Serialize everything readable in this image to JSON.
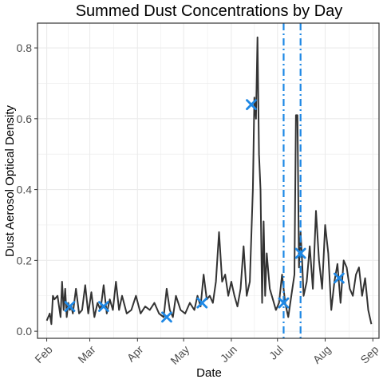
{
  "chart_data": {
    "type": "line",
    "title": "Summed Dust Concentrations by Day",
    "xlabel": "Date",
    "ylabel": "Dust Aerosol Optical Density",
    "x_ticks": [
      {
        "date": "2021-02-01",
        "label": "Feb"
      },
      {
        "date": "2021-03-01",
        "label": "Mar"
      },
      {
        "date": "2021-04-01",
        "label": "Apr"
      },
      {
        "date": "2021-05-01",
        "label": "May"
      },
      {
        "date": "2021-06-01",
        "label": "Jun"
      },
      {
        "date": "2021-07-01",
        "label": "Jul"
      },
      {
        "date": "2021-08-01",
        "label": "Aug"
      },
      {
        "date": "2021-09-01",
        "label": "Sep"
      }
    ],
    "xlim": [
      "2021-01-26",
      "2021-09-05"
    ],
    "y_ticks": [
      {
        "value": 0.0,
        "label": "0.0"
      },
      {
        "value": 0.2,
        "label": "0.2"
      },
      {
        "value": 0.4,
        "label": "0.4"
      },
      {
        "value": 0.6,
        "label": "0.6"
      },
      {
        "value": 0.8,
        "label": "0.8"
      }
    ],
    "ylim": [
      -0.02,
      0.87
    ],
    "grid": true,
    "colors": {
      "line": "#333333",
      "marker": "#1e88e5",
      "vline": "#1e88e5",
      "grid": "#ebebeb",
      "panel_border": "#333333"
    },
    "series": [
      {
        "x": [
          "2021-02-01",
          "2021-02-03",
          "2021-02-04",
          "2021-02-05",
          "2021-02-06",
          "2021-02-08",
          "2021-02-09",
          "2021-02-10",
          "2021-02-11",
          "2021-02-12",
          "2021-02-13",
          "2021-02-14",
          "2021-02-15",
          "2021-02-16",
          "2021-02-17",
          "2021-02-18",
          "2021-02-20",
          "2021-02-22",
          "2021-02-24",
          "2021-02-26",
          "2021-02-28",
          "2021-03-02",
          "2021-03-04",
          "2021-03-06",
          "2021-03-08",
          "2021-03-10",
          "2021-03-12",
          "2021-03-14",
          "2021-03-16",
          "2021-03-18",
          "2021-03-20",
          "2021-03-22",
          "2021-03-25",
          "2021-03-28",
          "2021-03-31",
          "2021-04-03",
          "2021-04-06",
          "2021-04-09",
          "2021-04-12",
          "2021-04-15",
          "2021-04-18",
          "2021-04-20",
          "2021-04-22",
          "2021-04-24",
          "2021-04-26",
          "2021-04-29",
          "2021-05-02",
          "2021-05-05",
          "2021-05-08",
          "2021-05-10",
          "2021-05-12",
          "2021-05-14",
          "2021-05-16",
          "2021-05-18",
          "2021-05-20",
          "2021-05-22",
          "2021-05-24",
          "2021-05-26",
          "2021-05-28",
          "2021-05-30",
          "2021-06-01",
          "2021-06-03",
          "2021-06-05",
          "2021-06-07",
          "2021-06-09",
          "2021-06-11",
          "2021-06-13",
          "2021-06-15",
          "2021-06-16",
          "2021-06-17",
          "2021-06-18",
          "2021-06-19",
          "2021-06-20",
          "2021-06-21",
          "2021-06-22",
          "2021-06-23",
          "2021-06-24",
          "2021-06-26",
          "2021-06-28",
          "2021-06-30",
          "2021-07-02",
          "2021-07-04",
          "2021-07-06",
          "2021-07-08",
          "2021-07-10",
          "2021-07-12",
          "2021-07-13",
          "2021-07-14",
          "2021-07-15",
          "2021-07-16",
          "2021-07-17",
          "2021-07-18",
          "2021-07-20",
          "2021-07-22",
          "2021-07-24",
          "2021-07-26",
          "2021-07-28",
          "2021-07-30",
          "2021-08-01",
          "2021-08-03",
          "2021-08-05",
          "2021-08-07",
          "2021-08-09",
          "2021-08-11",
          "2021-08-13",
          "2021-08-15",
          "2021-08-17",
          "2021-08-19",
          "2021-08-21",
          "2021-08-23",
          "2021-08-25",
          "2021-08-27",
          "2021-08-29",
          "2021-08-31"
        ],
        "y": [
          0.03,
          0.05,
          0.02,
          0.1,
          0.09,
          0.1,
          0.07,
          0.04,
          0.14,
          0.06,
          0.12,
          0.04,
          0.08,
          0.06,
          0.07,
          0.05,
          0.12,
          0.05,
          0.06,
          0.13,
          0.05,
          0.11,
          0.04,
          0.08,
          0.06,
          0.13,
          0.05,
          0.09,
          0.06,
          0.14,
          0.06,
          0.1,
          0.05,
          0.06,
          0.1,
          0.05,
          0.07,
          0.06,
          0.08,
          0.05,
          0.04,
          0.12,
          0.06,
          0.04,
          0.1,
          0.06,
          0.05,
          0.08,
          0.06,
          0.1,
          0.07,
          0.16,
          0.09,
          0.1,
          0.08,
          0.14,
          0.28,
          0.14,
          0.16,
          0.1,
          0.14,
          0.1,
          0.07,
          0.12,
          0.24,
          0.1,
          0.14,
          0.4,
          0.66,
          0.6,
          0.83,
          0.5,
          0.4,
          0.08,
          0.31,
          0.1,
          0.22,
          0.12,
          0.09,
          0.06,
          0.08,
          0.16,
          0.08,
          0.04,
          0.1,
          0.16,
          0.61,
          0.61,
          0.18,
          0.28,
          0.2,
          0.1,
          0.14,
          0.24,
          0.12,
          0.34,
          0.2,
          0.12,
          0.3,
          0.22,
          0.06,
          0.14,
          0.19,
          0.08,
          0.2,
          0.18,
          0.12,
          0.1,
          0.16,
          0.18,
          0.1,
          0.15,
          0.06,
          0.02
        ]
      }
    ],
    "markers": [
      {
        "x": "2021-02-16",
        "y": 0.07
      },
      {
        "x": "2021-03-10",
        "y": 0.07
      },
      {
        "x": "2021-04-20",
        "y": 0.04
      },
      {
        "x": "2021-05-13",
        "y": 0.08
      },
      {
        "x": "2021-06-14",
        "y": 0.64
      },
      {
        "x": "2021-07-05",
        "y": 0.08
      },
      {
        "x": "2021-07-16",
        "y": 0.22
      },
      {
        "x": "2021-08-10",
        "y": 0.15
      }
    ],
    "vlines": [
      {
        "x": "2021-07-05"
      },
      {
        "x": "2021-07-16"
      }
    ]
  }
}
